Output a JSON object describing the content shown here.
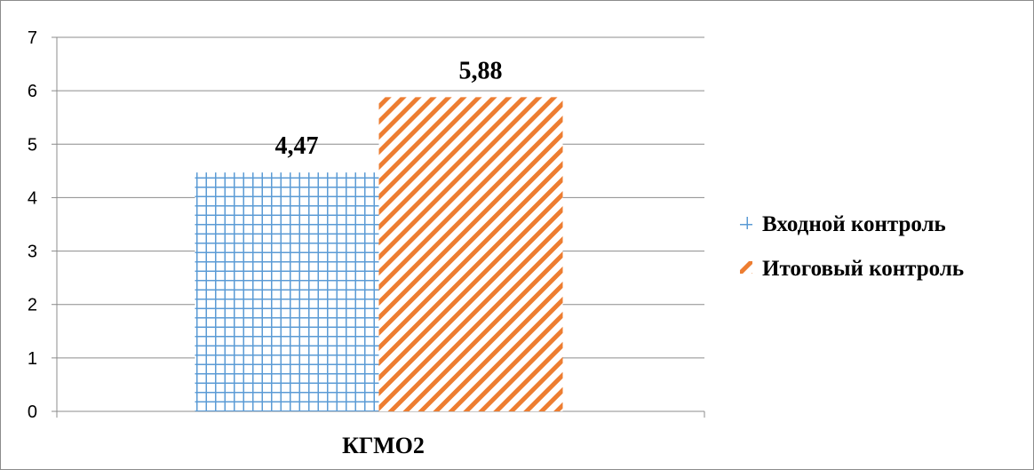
{
  "chart_data": {
    "type": "bar",
    "title": "",
    "xlabel": "",
    "ylabel": "",
    "categories": [
      "КГМО2"
    ],
    "series": [
      {
        "name": "Входной контроль",
        "values": [
          4.47
        ],
        "value_labels": [
          "4,47"
        ],
        "color": "#5b9bd5",
        "pattern": "grid"
      },
      {
        "name": "Итоговый контроль",
        "values": [
          5.88
        ],
        "value_labels": [
          "5,88"
        ],
        "color": "#ed7d31",
        "pattern": "diagonal-stripes"
      }
    ],
    "ylim": [
      0,
      7
    ],
    "yticks": [
      0,
      1,
      2,
      3,
      4,
      5,
      6,
      7
    ],
    "grid": true,
    "legend_position": "right"
  }
}
